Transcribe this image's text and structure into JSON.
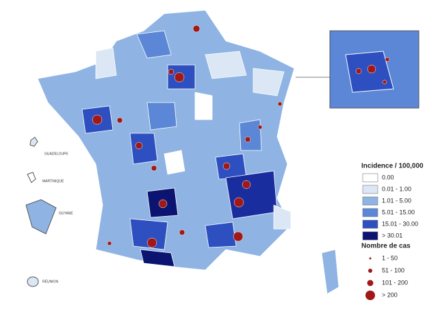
{
  "legend": {
    "incidence_title": "Incidence / 100,000",
    "incidence_classes": [
      "0.00",
      "0.01 - 1.00",
      "1.01 - 5.00",
      "5.01 - 15.00",
      "15.01 - 30.00",
      "> 30.01"
    ],
    "cases_title": "Nombre de cas",
    "cases_classes": [
      "1 - 50",
      "51 - 100",
      "101 - 200",
      "> 200"
    ]
  },
  "territories": [
    "GUADELOUPE",
    "MARTINIQUE",
    "GUYANE",
    "RÉUNION"
  ]
}
